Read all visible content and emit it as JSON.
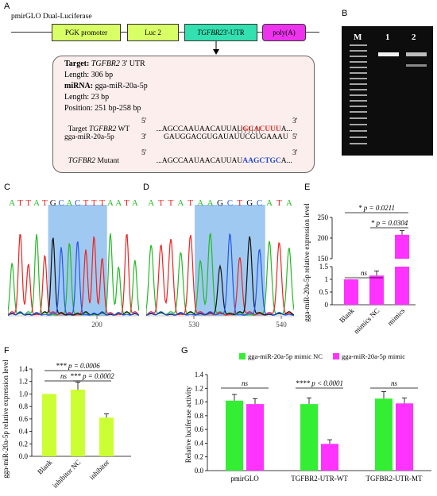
{
  "panels": {
    "a": "A",
    "b": "B",
    "c": "C",
    "d": "D",
    "e": "E",
    "f": "F",
    "g": "G"
  },
  "panel_a": {
    "vector_title": "pmirGLO Dual-Luciferase",
    "genes": {
      "pgk": "PGK promoter",
      "luc": "Luc 2",
      "utr_gene": "TGFBR2",
      "utr_suffix": " 3'-UTR",
      "polya": "poly(A)"
    },
    "info": {
      "target_label": "Target:",
      "target_gene": "TGFBR2",
      "target_suffix": " 3' UTR",
      "length1": "Length: 306 bp",
      "mirna_label": "miRNA:",
      "mirna_value": " gga-miR-20a-5p",
      "length2": "Length: 23 bp",
      "position": "Position: 251 bp-258 bp"
    },
    "seq": {
      "wt_label": "Target",
      "wt_gene": "TGFBR2",
      "wt_suffix": " WT",
      "wt_5": "5'",
      "wt_prefix": "...AGCCAAUAACAUUAU",
      "wt_site": "GCACUUU",
      "wt_end": "A...",
      "wt_3": "3'",
      "bars": "| | | | | | |",
      "mir_label": "gga-miR-20a-5p",
      "mir_3": "3'",
      "mir_seq": "GAUGGACGUGAUAUUCGUGAAAU",
      "mir_5": "5'",
      "mut_gene": "TGFBR2",
      "mut_suffix": " Mutant",
      "mut_5": "5'",
      "mut_prefix": "...AGCCAAUAACAUUAU",
      "mut_site": "AAGCTGC",
      "mut_end": "A...",
      "mut_3": "3'"
    }
  },
  "panel_b": {
    "lanes": [
      "M",
      "1",
      "2"
    ]
  },
  "panel_c": {
    "sequence": [
      "A",
      "T",
      "T",
      "A",
      "T",
      "G",
      "C",
      "A",
      "C",
      "T",
      "T",
      "T",
      "A",
      "A",
      "T",
      "A"
    ],
    "position": "200"
  },
  "panel_d": {
    "sequence": [
      "A",
      "T",
      "T",
      "A",
      "T",
      "A",
      "A",
      "G",
      "C",
      "T",
      "G",
      "C",
      "A",
      "T",
      "A"
    ],
    "positions": [
      "530",
      "540"
    ]
  },
  "colors": {
    "bar_magenta": "#ff33ff",
    "bar_lime": "#ccff33",
    "bar_green": "#33ee33",
    "highlight": "#9fc9f0",
    "box_fill": "#fbeeec"
  },
  "chart_data": [
    {
      "id": "E",
      "type": "bar",
      "ylabel": "gga-miR-20a-5p relative expression level",
      "categories": [
        "Blank",
        "mimics NC",
        "mimics"
      ],
      "values": [
        1.0,
        1.15,
        208
      ],
      "errors": [
        0.0,
        0.18,
        10
      ],
      "yticks": [
        "0",
        "0.5",
        "1",
        "1.5",
        "150",
        "200",
        "250"
      ],
      "axis_break": true,
      "annotations": [
        {
          "text": "* p = 0.0211",
          "between": [
            "Blank",
            "mimics"
          ]
        },
        {
          "text": "* p = 0.0304",
          "between": [
            "mimics NC",
            "mimics"
          ]
        },
        {
          "text": "ns",
          "between": [
            "Blank",
            "mimics NC"
          ]
        }
      ]
    },
    {
      "id": "F",
      "type": "bar",
      "ylabel": "gga-miR-20a-5p relative expression level",
      "categories": [
        "Blank",
        "inhibitor NC",
        "inhibitor"
      ],
      "values": [
        1.0,
        1.07,
        0.62
      ],
      "errors": [
        0.0,
        0.12,
        0.06
      ],
      "ylim": [
        0,
        1.4
      ],
      "yticks": [
        "0.0",
        "0.2",
        "0.4",
        "0.6",
        "0.8",
        "1.0",
        "1.2",
        "1.4"
      ],
      "annotations": [
        {
          "text": "*** p = 0.0006",
          "between": [
            "Blank",
            "inhibitor"
          ]
        },
        {
          "text": "ns",
          "between": [
            "Blank",
            "inhibitor NC"
          ]
        },
        {
          "text": "*** p = 0.0002",
          "between": [
            "inhibitor NC",
            "inhibitor"
          ]
        }
      ]
    },
    {
      "id": "G",
      "type": "bar",
      "ylabel": "Relative luciferase activity",
      "categories": [
        "pmirGLO",
        "TGFBR2-UTR-WT",
        "TGFBR2-UTR-MT"
      ],
      "series": [
        {
          "name": "gga-miR-20a-5p mimic NC",
          "values": [
            1.02,
            0.97,
            1.05
          ],
          "errors": [
            0.09,
            0.09,
            0.1
          ]
        },
        {
          "name": "gga-miR-20a-5p mimic",
          "values": [
            0.97,
            0.39,
            0.98
          ],
          "errors": [
            0.08,
            0.06,
            0.08
          ]
        }
      ],
      "ylim": [
        0,
        1.4
      ],
      "yticks": [
        "0.0",
        "0.2",
        "0.4",
        "0.6",
        "0.8",
        "1.0",
        "1.2",
        "1.4"
      ],
      "annotations": [
        {
          "text": "ns",
          "category": "pmirGLO"
        },
        {
          "text": "**** p < 0.0001",
          "category": "TGFBR2-UTR-WT"
        },
        {
          "text": "ns",
          "category": "TGFBR2-UTR-MT"
        }
      ]
    }
  ]
}
